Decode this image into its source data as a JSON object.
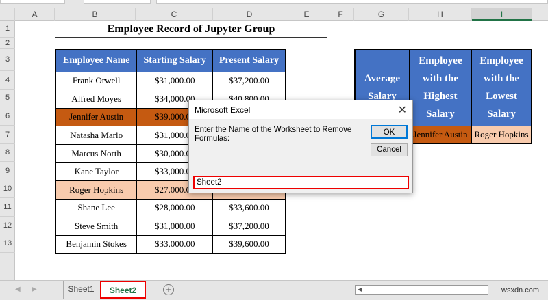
{
  "columns": [
    "A",
    "B",
    "C",
    "D",
    "E",
    "F",
    "G",
    "H",
    "I"
  ],
  "rows": [
    "1",
    "2",
    "3",
    "4",
    "5",
    "6",
    "7",
    "8",
    "9",
    "10",
    "11",
    "12",
    "13"
  ],
  "title": "Employee Record of Jupyter Group",
  "main_table": {
    "headers": [
      "Employee Name",
      "Starting Salary",
      "Present Salary"
    ],
    "rows": [
      [
        "Frank Orwell",
        "$31,000.00",
        "$37,200.00"
      ],
      [
        "Alfred Moyes",
        "$34,000.00",
        "$40,800.00"
      ],
      [
        "Jennifer Austin",
        "$39,000.00",
        ""
      ],
      [
        "Natasha Marlo",
        "$31,000.00",
        ""
      ],
      [
        "Marcus North",
        "$30,000.00",
        ""
      ],
      [
        "Kane Taylor",
        "$33,000.00",
        ""
      ],
      [
        "Roger Hopkins",
        "$27,000.00",
        ""
      ],
      [
        "Shane Lee",
        "$28,000.00",
        "$33,600.00"
      ],
      [
        "Steve Smith",
        "$31,000.00",
        "$37,200.00"
      ],
      [
        "Benjamin Stokes",
        "$33,000.00",
        "$39,600.00"
      ]
    ]
  },
  "side_table": {
    "headers": [
      "Average Salary",
      "Employee with the Highest Salary",
      "Employee with the Lowest Salary"
    ],
    "values": [
      "",
      "Jennifer Austin",
      "Roger Hopkins"
    ]
  },
  "dialog": {
    "title": "Microsoft Excel",
    "prompt": "Enter the Name of the Worksheet to Remove Formulas:",
    "ok": "OK",
    "cancel": "Cancel",
    "input_value": "Sheet2",
    "close_icon": "✕"
  },
  "tabs": {
    "sheets": [
      "Sheet1",
      "Sheet2"
    ],
    "active": "Sheet2",
    "add": "+"
  },
  "watermark": "wsxdn.com",
  "colors": {
    "header_blue": "#4472c4",
    "highest": "#c55a11",
    "lowest": "#f8cbad",
    "excel_green": "#217346"
  }
}
